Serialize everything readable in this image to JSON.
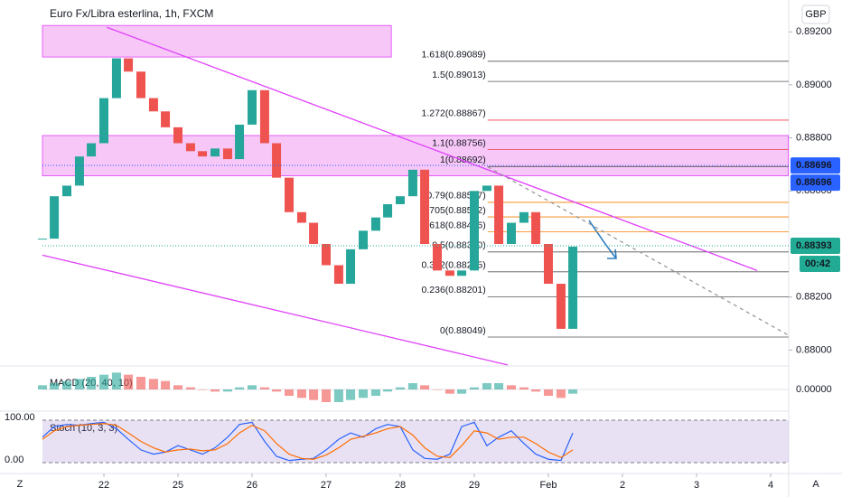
{
  "chart_data": {
    "type": "candlestick",
    "title": "Euro Fx/Libra esterlina, 1h, FXCM",
    "currency": "GBP",
    "up_color": "#26a69a",
    "down_color": "#ef5350",
    "x": [
      -0.83,
      -0.67,
      -0.5,
      -0.33,
      -0.17,
      0,
      0.17,
      0.33,
      0.5,
      0.67,
      0.83,
      1,
      1.17,
      1.33,
      1.5,
      1.67,
      1.83,
      2,
      2.17,
      2.33,
      2.5,
      2.67,
      2.83,
      3,
      3.17,
      3.33,
      3.5,
      3.67,
      3.83,
      4,
      4.17,
      4.33,
      4.5,
      4.67,
      4.83,
      5,
      5.17,
      5.33,
      5.5,
      5.67,
      5.83,
      6,
      6.17,
      6.33
    ],
    "close": [
      0.8842,
      0.8858,
      0.8862,
      0.8873,
      0.8878,
      0.8895,
      0.891,
      0.8905,
      0.8895,
      0.889,
      0.8884,
      0.8878,
      0.8875,
      0.8873,
      0.8876,
      0.8872,
      0.8885,
      0.8898,
      0.8878,
      0.8865,
      0.8852,
      0.8848,
      0.884,
      0.8832,
      0.8825,
      0.8838,
      0.8845,
      0.885,
      0.8855,
      0.8858,
      0.8868,
      0.884,
      0.883,
      0.8828,
      0.883,
      0.886,
      0.8862,
      0.884,
      0.8848,
      0.8852,
      0.884,
      0.8825,
      0.8808,
      0.8839
    ],
    "xlim": [
      -0.83,
      9.24
    ],
    "xticks": [
      {
        "value": 0,
        "label": "22"
      },
      {
        "value": 1,
        "label": "25"
      },
      {
        "value": 2,
        "label": "26"
      },
      {
        "value": 3,
        "label": "27"
      },
      {
        "value": 4,
        "label": "28"
      },
      {
        "value": 5,
        "label": "29"
      },
      {
        "value": 6,
        "label": "Feb"
      },
      {
        "value": 7,
        "label": "2"
      },
      {
        "value": 8,
        "label": "3"
      },
      {
        "value": 9,
        "label": "4"
      }
    ],
    "ylim": [
      0.8794,
      0.8932
    ],
    "yticks": [
      {
        "value": 0.892,
        "label": "0.89200"
      },
      {
        "value": 0.89,
        "label": "0.89000"
      },
      {
        "value": 0.888,
        "label": "0.88800"
      },
      {
        "value": 0.886,
        "label": "0.88600"
      },
      {
        "value": 0.882,
        "label": "0.88200"
      },
      {
        "value": 0.88,
        "label": "0.88000"
      }
    ],
    "zones": [
      {
        "x": [
          -0.83,
          3.88
        ],
        "y": [
          0.89105,
          0.89224
        ]
      },
      {
        "x": [
          -0.83,
          9.24
        ],
        "y": [
          0.88657,
          0.88809
        ]
      }
    ],
    "trendlines": [
      {
        "x": [
          0.04,
          8.82
        ],
        "y": [
          0.89217,
          0.883
        ],
        "color": "#e040fb",
        "dash": false
      },
      {
        "x": [
          -0.83,
          5.45
        ],
        "y": [
          0.88358,
          0.87944
        ],
        "color": "#e040fb",
        "dash": false
      },
      {
        "x": [
          5.18,
          9.24
        ],
        "y": [
          0.88691,
          0.88056
        ],
        "color": "#999999",
        "dash": true
      }
    ],
    "fib_start": 5.18,
    "fib": [
      {
        "label": "1.618(0.89089)",
        "value": 0.89089,
        "color": "#555555"
      },
      {
        "label": "1.5(0.89013)",
        "value": 0.89013,
        "color": "#555555"
      },
      {
        "label": "1.272(0.88867)",
        "value": 0.88867,
        "color": "#f23645"
      },
      {
        "label": "1.1(0.88756)",
        "value": 0.88756,
        "color": "#f23645"
      },
      {
        "label": "1(0.88692)",
        "value": 0.88692,
        "color": "#555555"
      },
      {
        "label": "0.79(0.88557)",
        "value": 0.88557,
        "color": "#f57c00"
      },
      {
        "label": "0.705(0.88502)",
        "value": 0.88502,
        "color": "#f57c00"
      },
      {
        "label": "0.618(0.88446)",
        "value": 0.88446,
        "color": "#f57c00"
      },
      {
        "label": "0.5(0.88370)",
        "value": 0.8837,
        "color": "#555555"
      },
      {
        "label": "0.382(0.88295)",
        "value": 0.88295,
        "color": "#555555"
      },
      {
        "label": "0.236(0.88201)",
        "value": 0.88201,
        "color": "#555555"
      },
      {
        "label": "0(0.88049)",
        "value": 0.88049,
        "color": "#555555"
      }
    ],
    "price_tags": [
      {
        "label": "0.88696",
        "value": 0.88696,
        "color": "#2962ff"
      },
      {
        "label": "0.88696",
        "value": 0.88696,
        "color": "#2962ff"
      },
      {
        "label": "0.88393",
        "value": 0.88393,
        "color": "#22ab94"
      }
    ],
    "countdown": "00:42",
    "macd": {
      "label": "MACD (20, 40, 10)",
      "ylim": [
        -0.0009,
        0.0009
      ],
      "yticks": [
        {
          "value": 0,
          "label": "0.00000"
        }
      ],
      "values": [
        0.0002,
        0.0003,
        0.0004,
        0.0005,
        0.0006,
        0.0007,
        0.0008,
        0.0007,
        0.0006,
        0.0005,
        0.0004,
        0.0002,
        0.0001,
        0,
        -0.0001,
        -0.0001,
        0.0001,
        0.0002,
        0.0001,
        -0.0001,
        -0.0003,
        -0.0004,
        -0.0005,
        -0.0006,
        -0.0006,
        -0.0005,
        -0.0004,
        -0.0003,
        -0.0001,
        0.0001,
        0.0003,
        0.0002,
        0,
        -0.0002,
        -0.0002,
        0.0001,
        0.0003,
        0.0003,
        0.0002,
        0.0001,
        -0.0001,
        -0.0003,
        -0.0004,
        -0.0002
      ]
    },
    "stoch": {
      "label": "Stoch (10, 3, 3)",
      "ylim": [
        0,
        100
      ],
      "yticks": [
        {
          "value": 100,
          "label": "100.00"
        },
        {
          "value": 0,
          "label": "0.00"
        }
      ],
      "series": [
        {
          "color": "#2962ff",
          "values": [
            60,
            85,
            90,
            88,
            92,
            95,
            80,
            55,
            30,
            20,
            25,
            40,
            30,
            20,
            35,
            60,
            90,
            95,
            50,
            15,
            5,
            8,
            10,
            30,
            55,
            70,
            60,
            80,
            90,
            85,
            30,
            10,
            8,
            20,
            85,
            95,
            40,
            60,
            75,
            45,
            20,
            8,
            5,
            70
          ]
        },
        {
          "color": "#ff6d00",
          "values": [
            55,
            75,
            85,
            88,
            90,
            92,
            88,
            70,
            50,
            35,
            25,
            30,
            32,
            28,
            30,
            45,
            70,
            88,
            75,
            45,
            20,
            10,
            8,
            18,
            35,
            55,
            62,
            70,
            80,
            85,
            65,
            35,
            15,
            12,
            40,
            75,
            70,
            55,
            60,
            60,
            45,
            25,
            12,
            30
          ]
        }
      ]
    }
  }
}
